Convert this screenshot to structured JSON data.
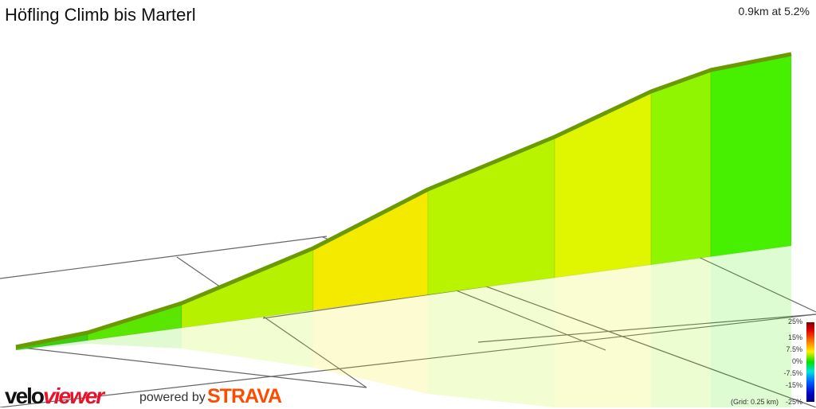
{
  "header": {
    "title": "Höfling Climb bis Marterl",
    "summary": "0.9km at 5.2%"
  },
  "chart_data": {
    "type": "area",
    "title": "Höfling Climb bis Marterl",
    "subtitle": "0.9km at 5.2%",
    "view": "3d-elevation-profile",
    "segment_colors": [
      "#3ccf10",
      "#5ae600",
      "#b6f200",
      "#f4ea00",
      "#b8f400",
      "#e0f600",
      "#8ff500",
      "#46f000"
    ],
    "legend": {
      "ticks": [
        "25%",
        "15%",
        "7.5%",
        "0%",
        "-7.5%",
        "-15%",
        "-25%"
      ],
      "placement": "bottom-right"
    },
    "grid_note": "(Grid: 0.25 km)"
  },
  "branding": {
    "velo": "velo",
    "viewer": "viewer",
    "powered_by": "powered by",
    "strava": "STRAVA"
  }
}
